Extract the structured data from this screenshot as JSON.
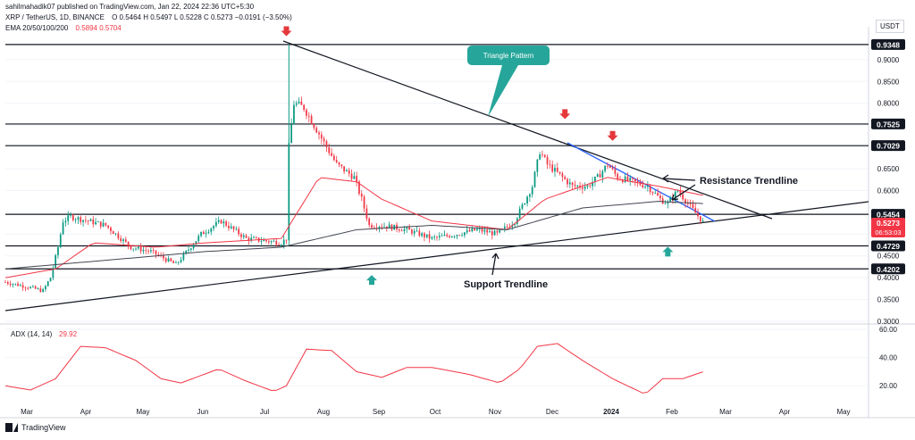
{
  "header": {
    "publisher": "sahilmahadik07 published on TradingView.com, Jan 22, 2024 22:36 UTC+5:30",
    "symbol": "XRP / TetherUS, 1D, BINANCE",
    "ohlc": "O 0.5464  H 0.5497  L 0.5228  C 0.5273  −0.0191 (−3.50%)",
    "ema_label": "EMA 20/50/100/200",
    "ema_values": "0.5894  0.5704",
    "currency": "USDT"
  },
  "footer": {
    "brand": "TradingView"
  },
  "colors": {
    "up": "#089981",
    "down": "#f23645",
    "ema_fast": "#f23645",
    "ema_slow": "#434651",
    "trend_blue": "#2962ff",
    "adx": "#f23645",
    "callout": "#26a69a"
  },
  "chart_data": [
    {
      "type": "candlestick",
      "title": "XRP / TetherUS, 1D, BINANCE",
      "x_ticks": [
        "Mar",
        "Apr",
        "May",
        "Jun",
        "Jul",
        "Aug",
        "Sep",
        "Oct",
        "Nov",
        "Dec",
        "2024",
        "Feb",
        "Mar",
        "Apr",
        "May"
      ],
      "y_ticks": [
        "0.9000",
        "0.8500",
        "0.8000",
        "0.7500",
        "0.7000",
        "0.6500",
        "0.6000",
        "0.5500",
        "0.5000",
        "0.4500",
        "0.4000",
        "0.3500",
        "0.3000"
      ],
      "ylim": [
        0.3,
        0.955
      ],
      "price_path": [
        {
          "t": 0,
          "p": 0.39
        },
        {
          "t": 8,
          "p": 0.38
        },
        {
          "t": 15,
          "p": 0.37
        },
        {
          "t": 18,
          "p": 0.4
        },
        {
          "t": 21,
          "p": 0.47
        },
        {
          "t": 23,
          "p": 0.53
        },
        {
          "t": 26,
          "p": 0.54
        },
        {
          "t": 33,
          "p": 0.53
        },
        {
          "t": 40,
          "p": 0.52
        },
        {
          "t": 50,
          "p": 0.47
        },
        {
          "t": 58,
          "p": 0.46
        },
        {
          "t": 68,
          "p": 0.43
        },
        {
          "t": 78,
          "p": 0.5
        },
        {
          "t": 86,
          "p": 0.53
        },
        {
          "t": 96,
          "p": 0.49
        },
        {
          "t": 110,
          "p": 0.48
        },
        {
          "t": 112,
          "p": 0.49
        },
        {
          "t": 113,
          "p": 0.7
        },
        {
          "t": 115,
          "p": 0.8
        },
        {
          "t": 119,
          "p": 0.79
        },
        {
          "t": 125,
          "p": 0.73
        },
        {
          "t": 132,
          "p": 0.66
        },
        {
          "t": 139,
          "p": 0.63
        },
        {
          "t": 142,
          "p": 0.58
        },
        {
          "t": 145,
          "p": 0.52
        },
        {
          "t": 150,
          "p": 0.52
        },
        {
          "t": 160,
          "p": 0.51
        },
        {
          "t": 170,
          "p": 0.49
        },
        {
          "t": 180,
          "p": 0.5
        },
        {
          "t": 188,
          "p": 0.51
        },
        {
          "t": 196,
          "p": 0.5
        },
        {
          "t": 203,
          "p": 0.53
        },
        {
          "t": 210,
          "p": 0.61
        },
        {
          "t": 213,
          "p": 0.69
        },
        {
          "t": 216,
          "p": 0.66
        },
        {
          "t": 220,
          "p": 0.64
        },
        {
          "t": 226,
          "p": 0.61
        },
        {
          "t": 232,
          "p": 0.61
        },
        {
          "t": 236,
          "p": 0.63
        },
        {
          "t": 240,
          "p": 0.66
        },
        {
          "t": 244,
          "p": 0.63
        },
        {
          "t": 250,
          "p": 0.62
        },
        {
          "t": 256,
          "p": 0.61
        },
        {
          "t": 261,
          "p": 0.58
        },
        {
          "t": 264,
          "p": 0.57
        },
        {
          "t": 268,
          "p": 0.6
        },
        {
          "t": 272,
          "p": 0.57
        },
        {
          "t": 278,
          "p": 0.5273
        }
      ],
      "ema_20_path": [
        {
          "t": 0,
          "p": 0.4
        },
        {
          "t": 20,
          "p": 0.42
        },
        {
          "t": 35,
          "p": 0.48
        },
        {
          "t": 60,
          "p": 0.47
        },
        {
          "t": 80,
          "p": 0.48
        },
        {
          "t": 110,
          "p": 0.49
        },
        {
          "t": 125,
          "p": 0.63
        },
        {
          "t": 140,
          "p": 0.62
        },
        {
          "t": 150,
          "p": 0.58
        },
        {
          "t": 170,
          "p": 0.53
        },
        {
          "t": 200,
          "p": 0.51
        },
        {
          "t": 215,
          "p": 0.58
        },
        {
          "t": 240,
          "p": 0.63
        },
        {
          "t": 260,
          "p": 0.61
        },
        {
          "t": 278,
          "p": 0.589
        }
      ],
      "ema_200_path": [
        {
          "t": 0,
          "p": 0.42
        },
        {
          "t": 40,
          "p": 0.44
        },
        {
          "t": 80,
          "p": 0.46
        },
        {
          "t": 110,
          "p": 0.47
        },
        {
          "t": 140,
          "p": 0.51
        },
        {
          "t": 170,
          "p": 0.52
        },
        {
          "t": 200,
          "p": 0.51
        },
        {
          "t": 230,
          "p": 0.56
        },
        {
          "t": 260,
          "p": 0.575
        },
        {
          "t": 278,
          "p": 0.57
        }
      ],
      "levels": [
        {
          "label": "0.9348",
          "value": 0.9348
        },
        {
          "label": "0.7525",
          "value": 0.7525
        },
        {
          "label": "0.7029",
          "value": 0.7029
        },
        {
          "label": "0.5454",
          "value": 0.5454
        },
        {
          "label": "0.4729",
          "value": 0.4729
        },
        {
          "label": "0.4202",
          "value": 0.4202
        }
      ],
      "current_price": {
        "label": "0.5273",
        "countdown": "06:53:03",
        "value": 0.5273
      },
      "annotations": {
        "triangle_label": "Triangle Pattern",
        "resistance_label": "Resistance Trendline",
        "support_label": "Support Trendline"
      },
      "down_markers": [
        {
          "t": 112,
          "p": 0.96
        },
        {
          "t": 223,
          "p": 0.77
        },
        {
          "t": 242,
          "p": 0.72
        }
      ],
      "up_markers": [
        {
          "t": 146,
          "p": 0.4
        },
        {
          "t": 264,
          "p": 0.465
        }
      ]
    },
    {
      "type": "line",
      "title": "ADX (14, 14)",
      "value_label": "29.92",
      "y_ticks": [
        "60.00",
        "40.00",
        "20.00"
      ],
      "ylim": [
        10,
        62
      ],
      "values_path": [
        {
          "t": 0,
          "p": 20
        },
        {
          "t": 10,
          "p": 17
        },
        {
          "t": 20,
          "p": 25
        },
        {
          "t": 30,
          "p": 48
        },
        {
          "t": 40,
          "p": 47
        },
        {
          "t": 52,
          "p": 38
        },
        {
          "t": 62,
          "p": 25
        },
        {
          "t": 70,
          "p": 22
        },
        {
          "t": 85,
          "p": 32
        },
        {
          "t": 95,
          "p": 24
        },
        {
          "t": 107,
          "p": 16
        },
        {
          "t": 112,
          "p": 20
        },
        {
          "t": 120,
          "p": 46
        },
        {
          "t": 130,
          "p": 45
        },
        {
          "t": 140,
          "p": 30
        },
        {
          "t": 150,
          "p": 26
        },
        {
          "t": 160,
          "p": 33
        },
        {
          "t": 170,
          "p": 33
        },
        {
          "t": 185,
          "p": 28
        },
        {
          "t": 197,
          "p": 22
        },
        {
          "t": 205,
          "p": 32
        },
        {
          "t": 212,
          "p": 48
        },
        {
          "t": 220,
          "p": 50
        },
        {
          "t": 230,
          "p": 38
        },
        {
          "t": 242,
          "p": 25
        },
        {
          "t": 255,
          "p": 14
        },
        {
          "t": 262,
          "p": 25
        },
        {
          "t": 270,
          "p": 25
        },
        {
          "t": 278,
          "p": 29.92
        }
      ]
    }
  ]
}
